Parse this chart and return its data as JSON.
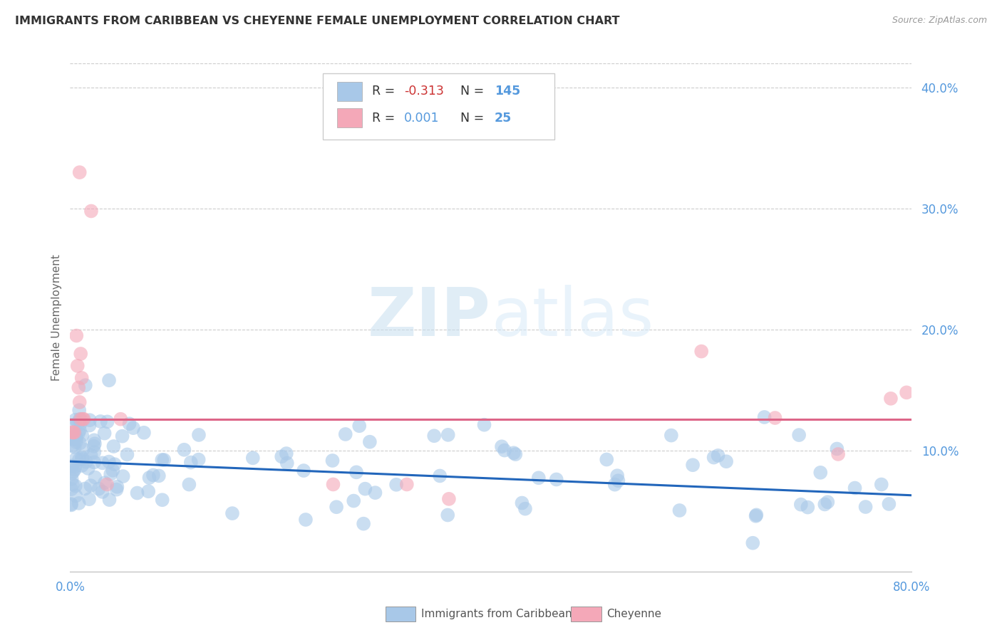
{
  "title": "IMMIGRANTS FROM CARIBBEAN VS CHEYENNE FEMALE UNEMPLOYMENT CORRELATION CHART",
  "source": "Source: ZipAtlas.com",
  "ylabel": "Female Unemployment",
  "legend_label1": "Immigrants from Caribbean",
  "legend_label2": "Cheyenne",
  "xlim": [
    0.0,
    0.8
  ],
  "ylim": [
    0.0,
    0.42
  ],
  "blue_color": "#a8c8e8",
  "pink_color": "#f4a8b8",
  "blue_line_color": "#2266bb",
  "pink_line_color": "#dd6688",
  "axis_tick_color": "#5599dd",
  "grid_color": "#cccccc",
  "title_color": "#333333",
  "watermark_color": "#d8eaf8",
  "blue_line_y0": 0.091,
  "blue_line_y1": 0.063,
  "pink_line_y": 0.126
}
